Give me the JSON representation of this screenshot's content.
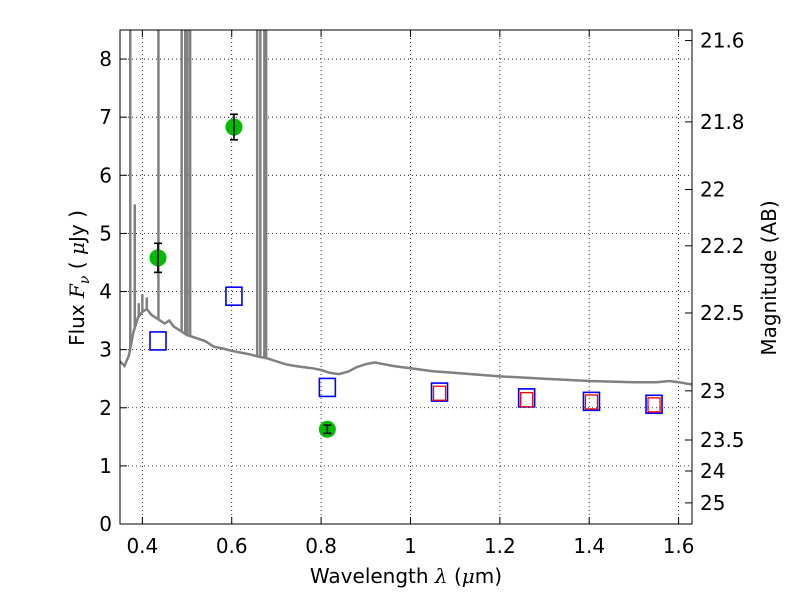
{
  "chart_data": {
    "type": "scatter",
    "title": "",
    "xlabel": "Wavelength  λ (μm)",
    "ylabel": "Flux  Fν  ( μJy )",
    "ylabel_right": "Magnitude (AB)",
    "xlim": [
      0.35,
      1.63
    ],
    "ylim": [
      0,
      8.5
    ],
    "grid": true,
    "x_ticks": [
      0.4,
      0.6,
      0.8,
      1,
      1.2,
      1.4,
      1.6
    ],
    "x_tick_labels": [
      "0.4",
      "0.6",
      "0.8",
      "1",
      "1.2",
      "1.4",
      "1.6"
    ],
    "y_ticks": [
      0,
      1,
      2,
      3,
      4,
      5,
      6,
      7,
      8
    ],
    "y_tick_labels": [
      "0",
      "1",
      "2",
      "3",
      "4",
      "5",
      "6",
      "7",
      "8"
    ],
    "right_ticks": [
      21.6,
      21.8,
      22,
      22.2,
      22.5,
      23,
      23.5,
      24,
      25
    ],
    "right_tick_labels": [
      "21.6",
      "21.8",
      "22",
      "22.2",
      "22.5",
      "23",
      "23.5",
      "24",
      "25"
    ],
    "series": [
      {
        "kind": "observed",
        "marker": "circle",
        "color": "#00bb00",
        "points": [
          {
            "x": 0.435,
            "y": 4.58,
            "err": 0.25
          },
          {
            "x": 0.605,
            "y": 6.83,
            "err": 0.22
          },
          {
            "x": 0.814,
            "y": 1.63,
            "err": 0.07
          }
        ]
      },
      {
        "kind": "model-blue",
        "marker": "open-square",
        "color": "#0000ff",
        "points": [
          {
            "x": 0.435,
            "y": 3.15
          },
          {
            "x": 0.605,
            "y": 3.92
          },
          {
            "x": 0.814,
            "y": 2.35
          },
          {
            "x": 1.065,
            "y": 2.27
          },
          {
            "x": 1.26,
            "y": 2.17
          },
          {
            "x": 1.405,
            "y": 2.11
          },
          {
            "x": 1.545,
            "y": 2.06
          }
        ]
      },
      {
        "kind": "model-red",
        "marker": "open-square",
        "color": "#ff0000",
        "points": [
          {
            "x": 1.065,
            "y": 2.25
          },
          {
            "x": 1.26,
            "y": 2.14
          },
          {
            "x": 1.405,
            "y": 2.1
          },
          {
            "x": 1.545,
            "y": 2.05
          }
        ]
      },
      {
        "kind": "spectrum",
        "color": "#808080",
        "continuum": [
          [
            0.35,
            2.8
          ],
          [
            0.36,
            2.72
          ],
          [
            0.37,
            2.9
          ],
          [
            0.38,
            3.3
          ],
          [
            0.39,
            3.55
          ],
          [
            0.4,
            3.65
          ],
          [
            0.41,
            3.7
          ],
          [
            0.42,
            3.6
          ],
          [
            0.43,
            3.55
          ],
          [
            0.44,
            3.5
          ],
          [
            0.45,
            3.45
          ],
          [
            0.46,
            3.5
          ],
          [
            0.47,
            3.4
          ],
          [
            0.48,
            3.35
          ],
          [
            0.49,
            3.3
          ],
          [
            0.5,
            3.25
          ],
          [
            0.52,
            3.2
          ],
          [
            0.54,
            3.15
          ],
          [
            0.56,
            3.05
          ],
          [
            0.58,
            3.02
          ],
          [
            0.6,
            2.98
          ],
          [
            0.62,
            2.95
          ],
          [
            0.64,
            2.92
          ],
          [
            0.66,
            2.88
          ],
          [
            0.68,
            2.85
          ],
          [
            0.7,
            2.8
          ],
          [
            0.72,
            2.75
          ],
          [
            0.74,
            2.72
          ],
          [
            0.76,
            2.7
          ],
          [
            0.78,
            2.68
          ],
          [
            0.8,
            2.65
          ],
          [
            0.82,
            2.6
          ],
          [
            0.84,
            2.58
          ],
          [
            0.86,
            2.62
          ],
          [
            0.88,
            2.7
          ],
          [
            0.9,
            2.75
          ],
          [
            0.92,
            2.78
          ],
          [
            0.94,
            2.75
          ],
          [
            0.96,
            2.72
          ],
          [
            0.98,
            2.7
          ],
          [
            1.0,
            2.68
          ],
          [
            1.05,
            2.63
          ],
          [
            1.1,
            2.6
          ],
          [
            1.15,
            2.57
          ],
          [
            1.2,
            2.54
          ],
          [
            1.25,
            2.52
          ],
          [
            1.3,
            2.5
          ],
          [
            1.35,
            2.48
          ],
          [
            1.4,
            2.46
          ],
          [
            1.45,
            2.45
          ],
          [
            1.5,
            2.44
          ],
          [
            1.55,
            2.44
          ],
          [
            1.58,
            2.46
          ],
          [
            1.6,
            2.44
          ],
          [
            1.63,
            2.4
          ]
        ],
        "spikes": [
          [
            0.373,
            8.6
          ],
          [
            0.383,
            5.5
          ],
          [
            0.392,
            3.8
          ],
          [
            0.4,
            3.95
          ],
          [
            0.41,
            3.9
          ],
          [
            0.436,
            8.6
          ],
          [
            0.488,
            8.6
          ],
          [
            0.496,
            8.6
          ],
          [
            0.501,
            8.6
          ],
          [
            0.507,
            8.6
          ],
          [
            0.657,
            8.6
          ],
          [
            0.664,
            8.6
          ],
          [
            0.673,
            8.6
          ],
          [
            0.677,
            8.6
          ]
        ]
      }
    ]
  }
}
